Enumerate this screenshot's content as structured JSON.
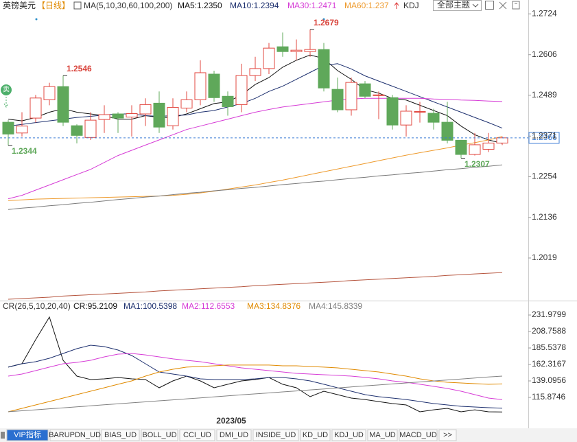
{
  "chart_data": [
    {
      "type": "candlestick",
      "title": "英镑美元",
      "period": "【日线】",
      "indicator": "MA(5,10,30,60,100,200)",
      "extra": "KDJ",
      "signal": "卖",
      "categories": [
        null,
        null,
        null,
        null,
        null,
        null,
        null,
        null,
        null,
        null,
        null,
        null,
        null,
        null,
        null,
        null,
        null,
        null,
        null,
        null,
        null,
        null,
        null,
        null,
        null,
        null,
        null,
        null,
        null,
        null,
        null,
        null,
        null,
        null,
        null,
        null,
        null
      ],
      "open": [
        1.2411,
        1.238,
        1.2423,
        1.2476,
        1.2514,
        1.2401,
        1.2367,
        1.2419,
        1.2435,
        1.2426,
        1.2435,
        1.2466,
        1.2401,
        1.2452,
        1.2476,
        1.255,
        1.2486,
        1.2462,
        1.2546,
        1.2566,
        1.2629,
        1.2615,
        1.2615,
        1.2621,
        1.2506,
        1.2447,
        1.2522,
        1.2488,
        1.2482,
        1.2403,
        1.244,
        1.2437,
        1.2411,
        1.2359,
        1.2318,
        1.2333,
        1.2351
      ],
      "high": [
        1.2417,
        1.244,
        1.249,
        1.2525,
        1.2546,
        1.2405,
        1.244,
        1.246,
        1.244,
        1.246,
        1.248,
        1.25,
        1.248,
        1.25,
        1.259,
        1.256,
        1.25,
        1.258,
        1.26,
        1.264,
        1.267,
        1.265,
        1.2679,
        1.264,
        1.254,
        1.254,
        1.253,
        1.25,
        1.249,
        1.246,
        1.247,
        1.245,
        1.247,
        1.236,
        1.238,
        1.238,
        1.237
      ],
      "low": [
        1.2344,
        1.237,
        1.241,
        1.246,
        1.24,
        1.235,
        1.236,
        1.238,
        1.238,
        1.237,
        1.24,
        1.238,
        1.239,
        1.244,
        1.246,
        1.247,
        1.243,
        1.244,
        1.253,
        1.255,
        1.26,
        1.259,
        1.26,
        1.25,
        1.244,
        1.243,
        1.248,
        1.242,
        1.239,
        1.237,
        1.241,
        1.239,
        1.235,
        1.2307,
        1.2315,
        1.2325,
        1.2345
      ],
      "close": [
        1.2377,
        1.24,
        1.2481,
        1.2514,
        1.2411,
        1.2373,
        1.2417,
        1.2433,
        1.2423,
        1.2436,
        1.2462,
        1.2397,
        1.2454,
        1.2476,
        1.2554,
        1.2482,
        1.2456,
        1.2546,
        1.2566,
        1.2625,
        1.2615,
        1.2619,
        1.2621,
        1.251,
        1.2447,
        1.2526,
        1.2486,
        1.249,
        1.2403,
        1.2443,
        1.2442,
        1.2411,
        1.2359,
        1.2318,
        1.2346,
        1.2351,
        1.2366
      ],
      "up_color": "#e2473f",
      "down_color": "#5fa85a",
      "series": [
        {
          "name": "MA5:1.2350",
          "color": "#111111",
          "values": [
            1.242,
            1.2415,
            1.2425,
            1.244,
            1.245,
            1.244,
            1.2435,
            1.243,
            1.242,
            1.242,
            1.243,
            1.2425,
            1.2425,
            1.2435,
            1.245,
            1.2465,
            1.247,
            1.249,
            1.252,
            1.254,
            1.257,
            1.259,
            1.2605,
            1.2595,
            1.256,
            1.2535,
            1.2505,
            1.2495,
            1.248,
            1.2475,
            1.246,
            1.2445,
            1.243,
            1.24,
            1.2375,
            1.236,
            1.235
          ]
        },
        {
          "name": "MA10:1.2394",
          "color": "#1c2f6e",
          "values": [
            1.24,
            1.2405,
            1.241,
            1.2415,
            1.242,
            1.2425,
            1.2428,
            1.2432,
            1.2435,
            1.2435,
            1.243,
            1.2428,
            1.243,
            1.2432,
            1.244,
            1.2445,
            1.2455,
            1.2465,
            1.248,
            1.25,
            1.2515,
            1.2535,
            1.2555,
            1.2575,
            1.258,
            1.2565,
            1.2545,
            1.253,
            1.2515,
            1.25,
            1.2485,
            1.247,
            1.2455,
            1.244,
            1.2425,
            1.241,
            1.2394
          ]
        },
        {
          "name": "MA30:1.2471",
          "color": "#d63bd6",
          "values": [
            1.219,
            1.22,
            1.2215,
            1.223,
            1.2245,
            1.226,
            1.2275,
            1.2295,
            1.2315,
            1.233,
            1.2345,
            1.236,
            1.2375,
            1.239,
            1.24,
            1.241,
            1.242,
            1.243,
            1.244,
            1.2448,
            1.2455,
            1.246,
            1.2465,
            1.247,
            1.2475,
            1.2478,
            1.248,
            1.248,
            1.248,
            1.248,
            1.248,
            1.2478,
            1.2477,
            1.2475,
            1.2474,
            1.2472,
            1.2471
          ]
        },
        {
          "name": "MA60:1.237",
          "color": "#ee9a2c",
          "values": [
            1.2185,
            1.2187,
            1.2189,
            1.219,
            1.2191,
            1.2192,
            1.2193,
            1.2194,
            1.2195,
            1.2196,
            1.2197,
            1.2198,
            1.22,
            1.2203,
            1.2207,
            1.2212,
            1.2218,
            1.2224,
            1.223,
            1.2237,
            1.2244,
            1.2252,
            1.226,
            1.2268,
            1.2276,
            1.2284,
            1.2292,
            1.23,
            1.2308,
            1.2316,
            1.2323,
            1.233,
            1.2337,
            1.2345,
            1.2352,
            1.236,
            1.237
          ]
        },
        {
          "color": "#7a7a7a",
          "values": [
            1.2159,
            1.2163,
            1.2166,
            1.217,
            1.2173,
            1.2177,
            1.218,
            1.2184,
            1.2188,
            1.2191,
            1.2195,
            1.2198,
            1.2202,
            1.2206,
            1.2209,
            1.2213,
            1.2216,
            1.222,
            1.2223,
            1.2227,
            1.2231,
            1.2234,
            1.2238,
            1.2241,
            1.2245,
            1.2249,
            1.2252,
            1.2256,
            1.2259,
            1.2263,
            1.2266,
            1.227,
            1.2274,
            1.2277,
            1.2281,
            1.2284,
            1.2288
          ]
        },
        {
          "color": "#b5533c",
          "values": [
            1.19,
            1.1902,
            1.1904,
            1.1906,
            1.1909,
            1.1911,
            1.1913,
            1.1915,
            1.1917,
            1.1919,
            1.1921,
            1.1924,
            1.1926,
            1.1928,
            1.193,
            1.1932,
            1.1934,
            1.1936,
            1.1939,
            1.1941,
            1.1943,
            1.1945,
            1.1947,
            1.1949,
            1.1951,
            1.1954,
            1.1956,
            1.1958,
            1.196,
            1.1962,
            1.1964,
            1.1966,
            1.1969,
            1.1971,
            1.1973,
            1.1975,
            1.1977
          ]
        }
      ],
      "high_marks": [
        1.2546,
        1.2679
      ],
      "low_marks": [
        1.2344,
        1.2307
      ],
      "last_price": 1.2366,
      "ylim": [
        1.1896,
        1.2764
      ],
      "yticks": [
        1.2724,
        1.2606,
        1.2489,
        1.2371,
        1.2254,
        1.2136,
        1.2019
      ]
    },
    {
      "type": "line",
      "title": "CR(26,5,10,20,40)",
      "categories": [
        null,
        null,
        null,
        null,
        null,
        null,
        null,
        null,
        null,
        null,
        null,
        null,
        null,
        null,
        null,
        null,
        "2023/05",
        null,
        null,
        null,
        null,
        null,
        null,
        null,
        null,
        null,
        null,
        null,
        null,
        null,
        null,
        null,
        null,
        null,
        null,
        null,
        null
      ],
      "series": [
        {
          "name": "CR:95.2109",
          "color": "#111111",
          "values": [
            158.5,
            163.4,
            197.2,
            229.1,
            168.1,
            145.9,
            141.0,
            142.0,
            143.9,
            142.0,
            141.0,
            129.4,
            139.1,
            145.9,
            139.1,
            129.4,
            134.3,
            139.1,
            141.0,
            143.9,
            134.3,
            129.4,
            116.8,
            124.6,
            119.7,
            114.9,
            112.9,
            110.0,
            107.2,
            105.2,
            95.5,
            98.4,
            100.4,
            95.5,
            98.4,
            95.5,
            95.2109
          ]
        },
        {
          "name": "MA1:100.5398",
          "color": "#1c2f6e",
          "values": [
            158.5,
            163.3,
            166.2,
            171.0,
            177.8,
            184.6,
            189.4,
            187.5,
            182.6,
            174.9,
            163.3,
            151.7,
            148.8,
            145.9,
            142.0,
            141.0,
            141.0,
            141.0,
            142.0,
            143.9,
            143.9,
            142.0,
            139.1,
            134.3,
            129.4,
            124.6,
            119.7,
            116.8,
            114.9,
            112.9,
            110.1,
            107.2,
            105.2,
            103.3,
            102.3,
            101.4,
            100.5398
          ]
        },
        {
          "name": "MA2:112.6553",
          "color": "#d63bd6",
          "values": [
            145.9,
            148.8,
            153.6,
            158.5,
            163.3,
            165.2,
            168.1,
            173.0,
            176.8,
            177.8,
            175.8,
            173.0,
            170.1,
            168.1,
            166.2,
            163.3,
            160.4,
            157.5,
            155.5,
            153.6,
            151.7,
            149.7,
            148.8,
            147.8,
            146.9,
            145.9,
            144.0,
            142.0,
            139.1,
            137.2,
            134.3,
            131.4,
            128.4,
            124.6,
            119.7,
            114.9,
            112.6553
          ]
        },
        {
          "name": "MA3:134.8376",
          "color": "#e08a00",
          "values": [
            95.55,
            100.4,
            105.2,
            110.1,
            114.9,
            119.7,
            124.6,
            129.4,
            134.3,
            139.1,
            145.9,
            151.7,
            155.5,
            158.5,
            159.4,
            160.4,
            161.4,
            161.4,
            161.4,
            161.4,
            160.4,
            160.4,
            159.4,
            158.5,
            157.5,
            155.5,
            153.6,
            151.7,
            148.8,
            145.9,
            142.0,
            139.1,
            137.2,
            136.2,
            135.2,
            134.3,
            134.8376
          ]
        },
        {
          "name": "MA4:145.8339",
          "color": "#808080",
          "values": [
            95.6,
            97.0,
            98.4,
            99.8,
            101.2,
            102.6,
            104.0,
            105.4,
            106.8,
            108.2,
            109.6,
            111.0,
            112.4,
            113.8,
            115.2,
            116.6,
            118.0,
            119.4,
            120.8,
            122.2,
            123.6,
            125.0,
            126.4,
            127.8,
            129.2,
            130.6,
            132.0,
            133.4,
            134.8,
            136.2,
            137.6,
            139.0,
            140.4,
            141.8,
            143.2,
            144.6,
            145.8339
          ]
        }
      ],
      "ylim": [
        90.71,
        250.36
      ],
      "yticks": [
        231.9799,
        208.7588,
        185.5378,
        162.3167,
        139.0956,
        115.8746
      ]
    }
  ],
  "toolbar": {
    "theme_button": "全部主题"
  },
  "tabs": [
    "VIP指标",
    "BARUPDN_UD",
    "BIAS_UD",
    "BOLL_UD",
    "CCI_UD",
    "DMI_UD",
    "INSIDE_UD",
    "KD_UD",
    "KDJ_UD",
    "MA_UD",
    "MACD_UD",
    ">>"
  ]
}
